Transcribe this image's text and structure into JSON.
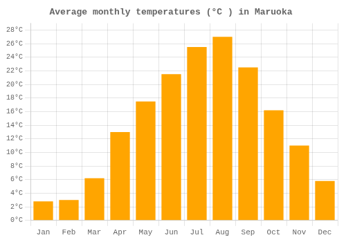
{
  "chart_data": {
    "type": "bar",
    "title": "Average monthly temperatures (°C ) in Maruoka",
    "categories": [
      "Jan",
      "Feb",
      "Mar",
      "Apr",
      "May",
      "Jun",
      "Jul",
      "Aug",
      "Sep",
      "Oct",
      "Nov",
      "Dec"
    ],
    "values": [
      2.8,
      3.0,
      6.2,
      13.0,
      17.5,
      21.5,
      25.5,
      27.0,
      22.5,
      16.2,
      11.0,
      5.8
    ],
    "color": "#FFA500",
    "ylim": [
      0,
      29
    ],
    "yticks": [
      {
        "value": 0,
        "label": "0°C"
      },
      {
        "value": 2,
        "label": "2°C"
      },
      {
        "value": 4,
        "label": "4°C"
      },
      {
        "value": 6,
        "label": "6°C"
      },
      {
        "value": 8,
        "label": "8°C"
      },
      {
        "value": 10,
        "label": "10°C"
      },
      {
        "value": 12,
        "label": "12°C"
      },
      {
        "value": 14,
        "label": "14°C"
      },
      {
        "value": 16,
        "label": "16°C"
      },
      {
        "value": 18,
        "label": "18°C"
      },
      {
        "value": 20,
        "label": "20°C"
      },
      {
        "value": 22,
        "label": "22°C"
      },
      {
        "value": 24,
        "label": "24°C"
      },
      {
        "value": 26,
        "label": "26°C"
      },
      {
        "value": 28,
        "label": "28°C"
      }
    ],
    "grid": true
  }
}
